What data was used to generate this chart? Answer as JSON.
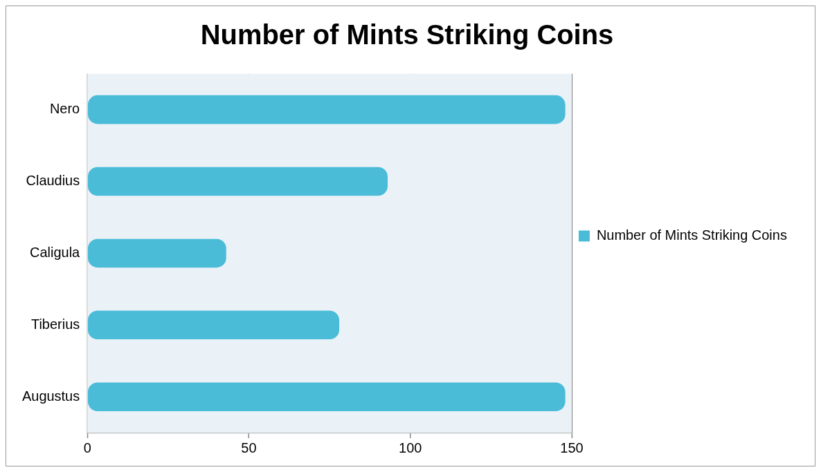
{
  "chart_data": {
    "type": "bar",
    "title": "Number of Mints Striking Coins",
    "orientation": "horizontal",
    "categories": [
      "Nero",
      "Claudius",
      "Caligula",
      "Tiberius",
      "Augustus"
    ],
    "series": [
      {
        "name": "Number of Mints Striking Coins",
        "color": "#4bbcd8",
        "values": [
          148,
          93,
          43,
          78,
          148
        ]
      }
    ],
    "xlim": [
      0,
      150
    ],
    "xticks": [
      0,
      50,
      100,
      150
    ],
    "grid": "x",
    "legend": "right"
  }
}
